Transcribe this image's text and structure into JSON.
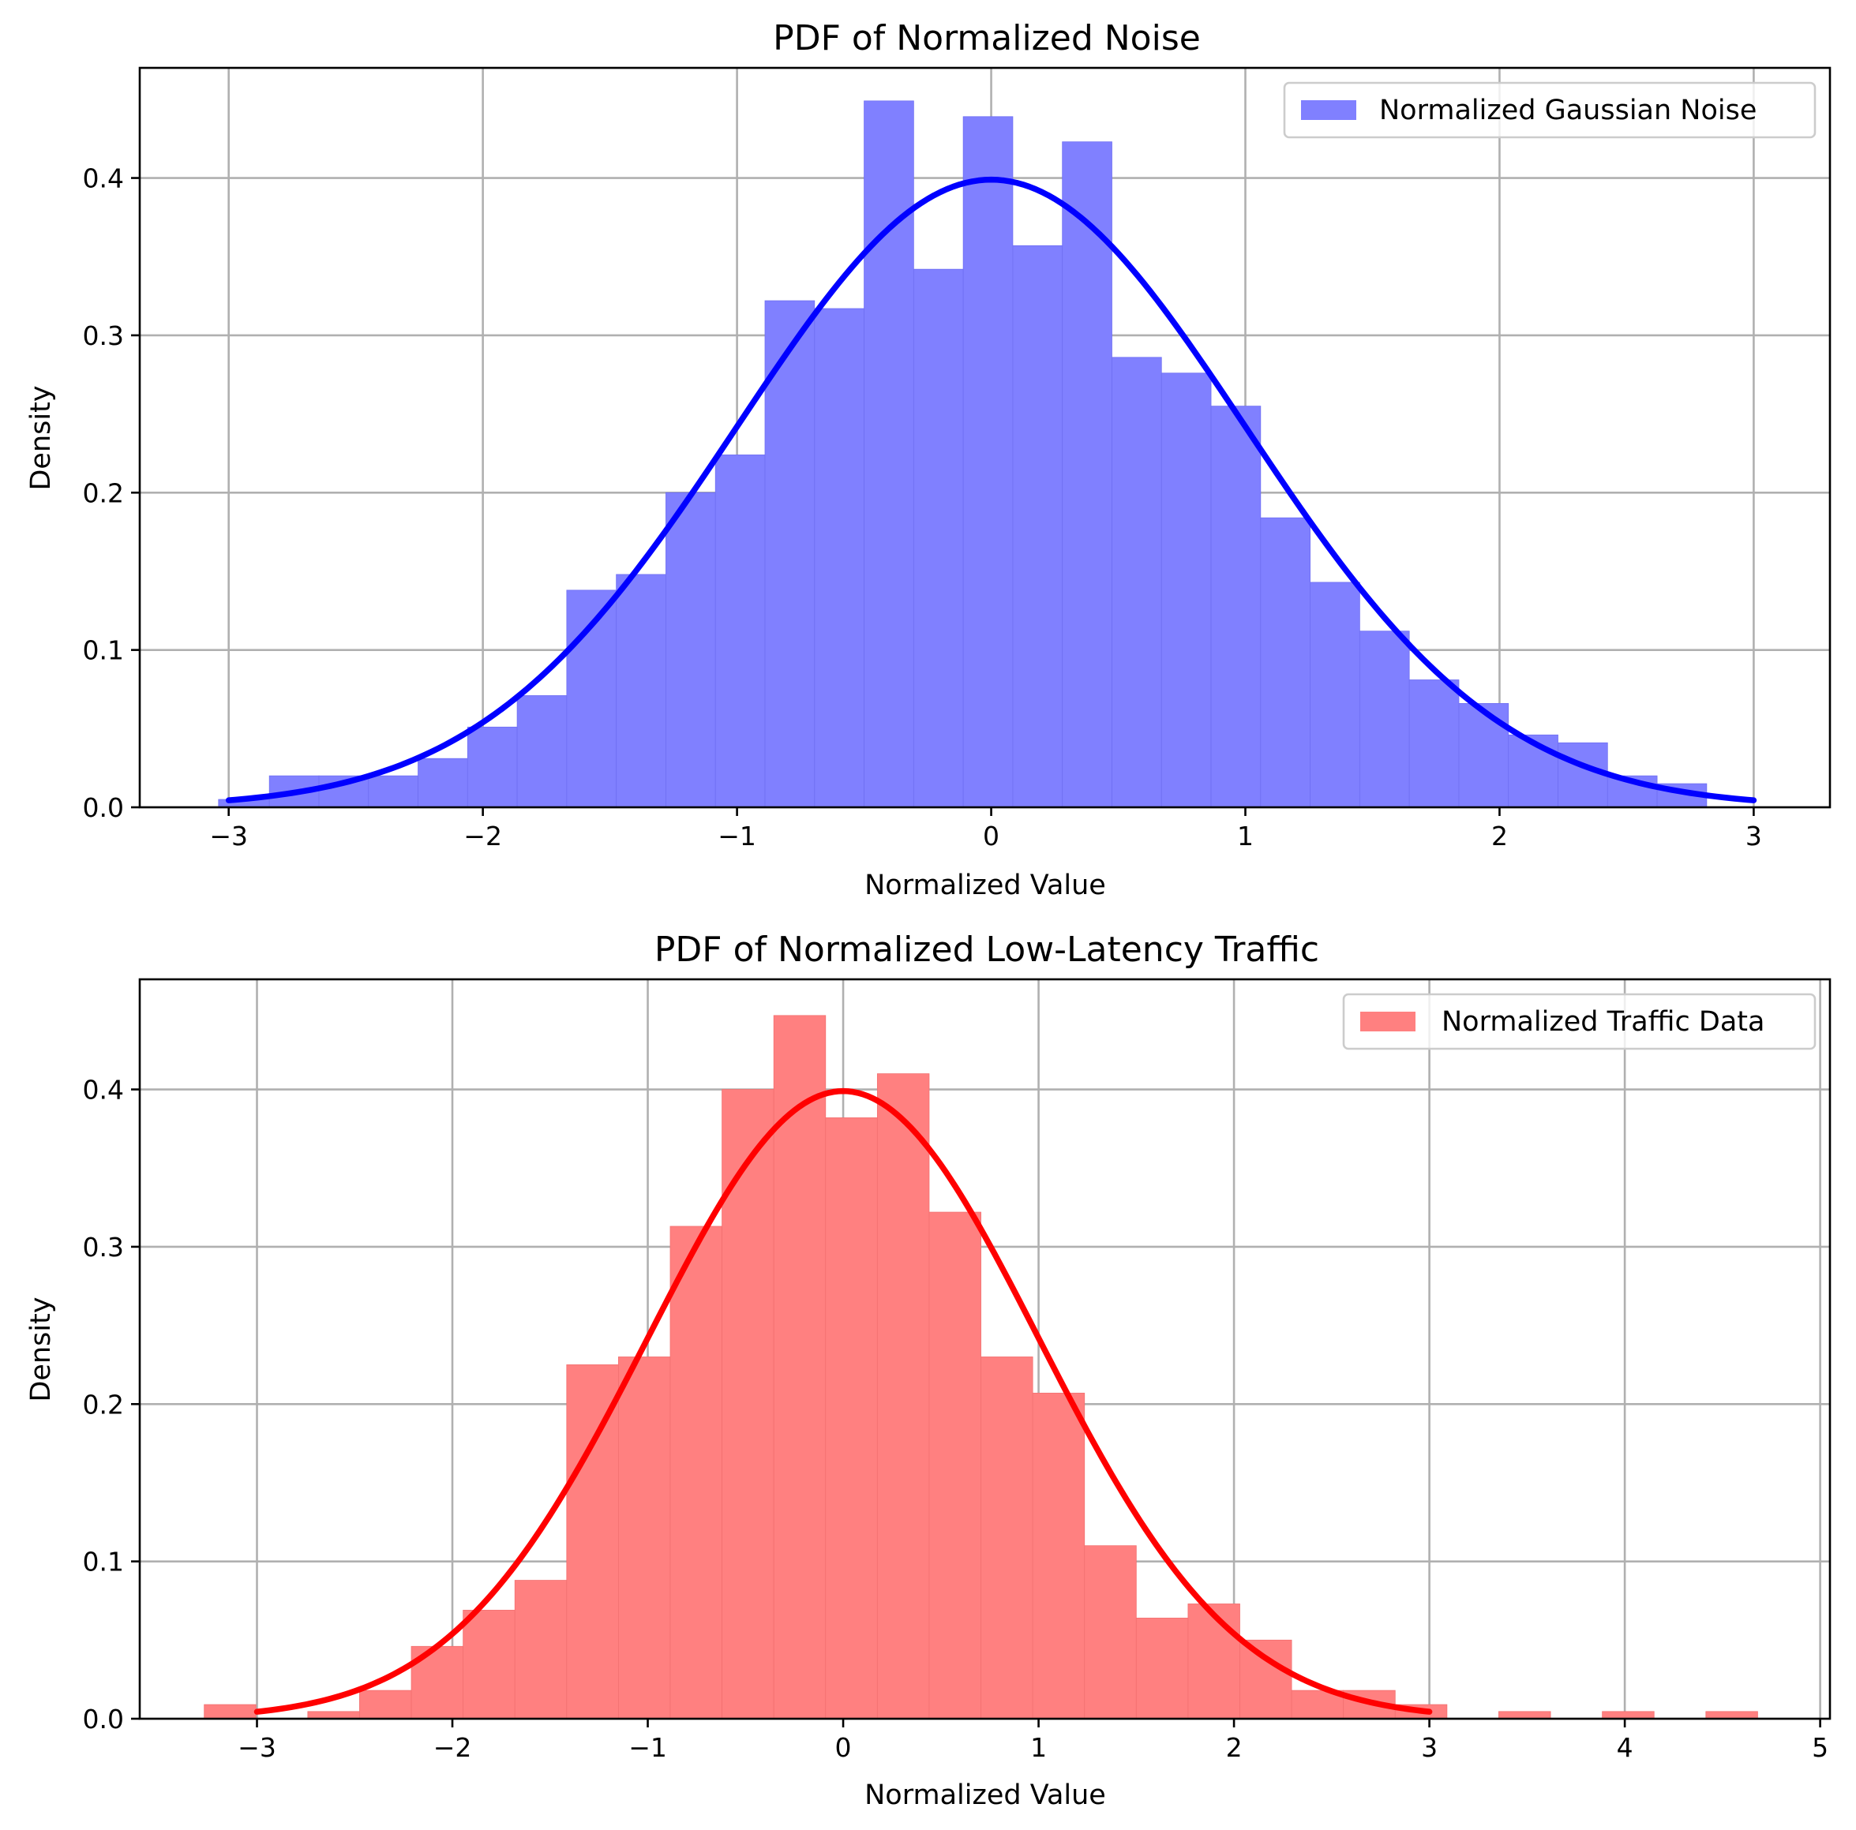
{
  "chart_data": [
    {
      "type": "bar",
      "title": "PDF of Normalized Noise",
      "xlabel": "Normalized Value",
      "ylabel": "Density",
      "xlim": [
        -3.35,
        3.3
      ],
      "ylim": [
        0,
        0.47
      ],
      "xticks": [
        -3,
        -2,
        -1,
        0,
        1,
        2,
        3
      ],
      "xtick_labels": [
        "−3",
        "−2",
        "−1",
        "0",
        "1",
        "2",
        "3"
      ],
      "yticks": [
        0.0,
        0.1,
        0.2,
        0.3,
        0.4
      ],
      "ytick_labels": [
        "0.0",
        "0.1",
        "0.2",
        "0.3",
        "0.4"
      ],
      "grid": true,
      "legend_position": "top-right",
      "legend": [
        "Normalized Gaussian Noise"
      ],
      "colors": {
        "bars": "#8080ff",
        "bar_edge": "#6f6ff2",
        "curve": "#0000ff"
      },
      "histogram": {
        "label": "Normalized Gaussian Noise",
        "bins": [
          [
            -3.04,
            -2.84,
            0.005
          ],
          [
            -2.84,
            -2.645,
            0.02
          ],
          [
            -2.645,
            -2.45,
            0.02
          ],
          [
            -2.45,
            -2.255,
            0.02
          ],
          [
            -2.255,
            -2.06,
            0.031
          ],
          [
            -2.06,
            -1.865,
            0.051
          ],
          [
            -1.865,
            -1.67,
            0.071
          ],
          [
            -1.67,
            -1.475,
            0.138
          ],
          [
            -1.475,
            -1.28,
            0.148
          ],
          [
            -1.28,
            -1.085,
            0.2
          ],
          [
            -1.085,
            -0.89,
            0.224
          ],
          [
            -0.89,
            -0.695,
            0.322
          ],
          [
            -0.695,
            -0.5,
            0.317
          ],
          [
            -0.5,
            -0.305,
            0.449
          ],
          [
            -0.305,
            -0.11,
            0.342
          ],
          [
            -0.11,
            0.085,
            0.439
          ],
          [
            0.085,
            0.28,
            0.357
          ],
          [
            0.28,
            0.475,
            0.423
          ],
          [
            0.475,
            0.67,
            0.286
          ],
          [
            0.67,
            0.865,
            0.276
          ],
          [
            0.865,
            1.06,
            0.255
          ],
          [
            1.06,
            1.255,
            0.184
          ],
          [
            1.255,
            1.45,
            0.143
          ],
          [
            1.45,
            1.645,
            0.112
          ],
          [
            1.645,
            1.84,
            0.081
          ],
          [
            1.84,
            2.035,
            0.066
          ],
          [
            2.035,
            2.23,
            0.046
          ],
          [
            2.23,
            2.425,
            0.041
          ],
          [
            2.425,
            2.62,
            0.02
          ],
          [
            2.62,
            2.815,
            0.015
          ]
        ]
      },
      "curve": {
        "type": "normal_pdf",
        "mean": 0,
        "std": 1,
        "x_range": [
          -3,
          3
        ]
      }
    },
    {
      "type": "bar",
      "title": "PDF of Normalized Low-Latency Traffic",
      "xlabel": "Normalized Value",
      "ylabel": "Density",
      "xlim": [
        -3.6,
        5.05
      ],
      "ylim": [
        0,
        0.47
      ],
      "xticks": [
        -3,
        -2,
        -1,
        0,
        1,
        2,
        3,
        4,
        5
      ],
      "xtick_labels": [
        "−3",
        "−2",
        "−1",
        "0",
        "1",
        "2",
        "3",
        "4",
        "5"
      ],
      "yticks": [
        0.0,
        0.1,
        0.2,
        0.3,
        0.4
      ],
      "ytick_labels": [
        "0.0",
        "0.1",
        "0.2",
        "0.3",
        "0.4"
      ],
      "grid": true,
      "legend_position": "top-right",
      "legend": [
        "Normalized Traffic Data"
      ],
      "colors": {
        "bars": "#ff8080",
        "bar_edge": "#f27070",
        "curve": "#ff0000"
      },
      "histogram": {
        "label": "Normalized Traffic Data",
        "bins": [
          [
            -3.27,
            -3.005,
            0.009
          ],
          [
            -3.005,
            -2.74,
            0.0
          ],
          [
            -2.74,
            -2.475,
            0.0046
          ],
          [
            -2.475,
            -2.21,
            0.018
          ],
          [
            -2.21,
            -1.945,
            0.046
          ],
          [
            -1.945,
            -1.68,
            0.069
          ],
          [
            -1.68,
            -1.415,
            0.088
          ],
          [
            -1.415,
            -1.15,
            0.225
          ],
          [
            -1.15,
            -0.885,
            0.23
          ],
          [
            -0.885,
            -0.62,
            0.313
          ],
          [
            -0.62,
            -0.355,
            0.4
          ],
          [
            -0.355,
            -0.09,
            0.447
          ],
          [
            -0.09,
            0.175,
            0.382
          ],
          [
            0.175,
            0.44,
            0.41
          ],
          [
            0.44,
            0.705,
            0.322
          ],
          [
            0.705,
            0.97,
            0.23
          ],
          [
            0.97,
            1.235,
            0.207
          ],
          [
            1.235,
            1.5,
            0.11
          ],
          [
            1.5,
            1.765,
            0.064
          ],
          [
            1.765,
            2.03,
            0.073
          ],
          [
            2.03,
            2.295,
            0.05
          ],
          [
            2.295,
            2.56,
            0.018
          ],
          [
            2.56,
            2.825,
            0.018
          ],
          [
            2.825,
            3.09,
            0.009
          ],
          [
            3.09,
            3.355,
            0.0
          ],
          [
            3.355,
            3.62,
            0.0046
          ],
          [
            3.62,
            3.885,
            0.0
          ],
          [
            3.885,
            4.15,
            0.0046
          ],
          [
            4.15,
            4.415,
            0.0
          ],
          [
            4.415,
            4.68,
            0.0046
          ]
        ]
      },
      "curve": {
        "type": "normal_pdf",
        "mean": 0,
        "std": 1,
        "x_range": [
          -3,
          3
        ]
      }
    }
  ]
}
